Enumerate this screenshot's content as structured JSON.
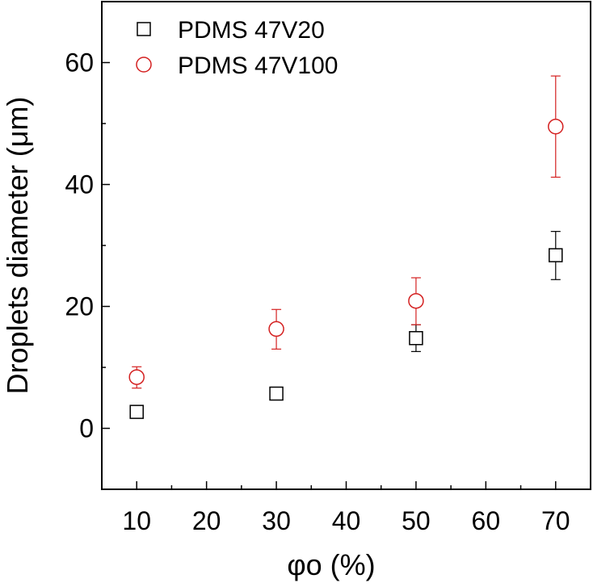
{
  "chart_data": {
    "type": "scatter",
    "title": "",
    "xlabel": "φo (%)",
    "ylabel": "Droplets diameter (μm)",
    "xlim": [
      5,
      75
    ],
    "ylim": [
      -10,
      70
    ],
    "xticks": [
      10,
      20,
      30,
      40,
      50,
      60,
      70
    ],
    "yticks": [
      0,
      20,
      40,
      60
    ],
    "grid": false,
    "legend_position": "top-left",
    "series": [
      {
        "name": "PDMS 47V20",
        "marker": "open-square",
        "color": "#000000",
        "points": [
          {
            "x": 10,
            "y": 2.7,
            "err_low": 1.8,
            "err_high": 3.6
          },
          {
            "x": 30,
            "y": 5.7,
            "err_low": 4.9,
            "err_high": 6.5
          },
          {
            "x": 50,
            "y": 14.8,
            "err_low": 12.6,
            "err_high": 17.0
          },
          {
            "x": 70,
            "y": 28.4,
            "err_low": 24.4,
            "err_high": 32.3
          }
        ]
      },
      {
        "name": "PDMS 47V100",
        "marker": "open-circle",
        "color": "#d42020",
        "points": [
          {
            "x": 10,
            "y": 8.4,
            "err_low": 6.6,
            "err_high": 10.1
          },
          {
            "x": 30,
            "y": 16.3,
            "err_low": 13.0,
            "err_high": 19.5
          },
          {
            "x": 50,
            "y": 20.9,
            "err_low": 17.0,
            "err_high": 24.7
          },
          {
            "x": 70,
            "y": 49.5,
            "err_low": 41.2,
            "err_high": 57.8
          }
        ]
      }
    ]
  }
}
